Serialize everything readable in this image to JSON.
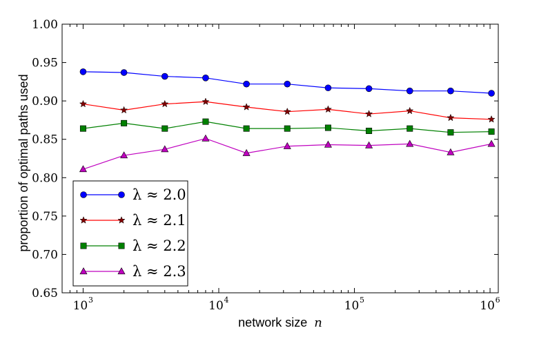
{
  "chart_data": {
    "type": "line",
    "title": "",
    "xlabel": "network size",
    "xlabel_var": "n",
    "ylabel": "proportion of optimal paths used",
    "xscale": "log",
    "xlim": [
      700,
      1150000
    ],
    "ylim": [
      0.65,
      1.0
    ],
    "yticks": [
      "0.65",
      "0.70",
      "0.75",
      "0.80",
      "0.85",
      "0.90",
      "0.95",
      "1.00"
    ],
    "xticks": [
      {
        "base": "10",
        "exp": "3",
        "value": 1000
      },
      {
        "base": "10",
        "exp": "4",
        "value": 10000
      },
      {
        "base": "10",
        "exp": "5",
        "value": 100000
      },
      {
        "base": "10",
        "exp": "6",
        "value": 1000000
      }
    ],
    "x": [
      1000,
      2000,
      4000,
      8000,
      16000,
      32000,
      64000,
      128000,
      256000,
      512000,
      1024000
    ],
    "legend_position": "lower-left",
    "series": [
      {
        "name": "λ ≈ 2.0",
        "color": "#0000ff",
        "marker": "circle",
        "marker_color": "#0000ff",
        "values": [
          0.938,
          0.937,
          0.932,
          0.93,
          0.922,
          0.922,
          0.917,
          0.916,
          0.913,
          0.913,
          0.91
        ]
      },
      {
        "name": "λ ≈ 2.1",
        "color": "#ff0000",
        "marker": "star",
        "marker_color": "#800000",
        "values": [
          0.896,
          0.888,
          0.896,
          0.899,
          0.892,
          0.886,
          0.889,
          0.883,
          0.887,
          0.878,
          0.876
        ]
      },
      {
        "name": "λ ≈ 2.2",
        "color": "#008000",
        "marker": "square",
        "marker_color": "#008000",
        "values": [
          0.864,
          0.871,
          0.864,
          0.873,
          0.864,
          0.864,
          0.865,
          0.861,
          0.864,
          0.859,
          0.86
        ]
      },
      {
        "name": "λ ≈ 2.3",
        "color": "#bf00bf",
        "marker": "triangle",
        "marker_color": "#bf00bf",
        "values": [
          0.811,
          0.829,
          0.837,
          0.851,
          0.832,
          0.841,
          0.843,
          0.842,
          0.844,
          0.833,
          0.844
        ]
      }
    ]
  }
}
